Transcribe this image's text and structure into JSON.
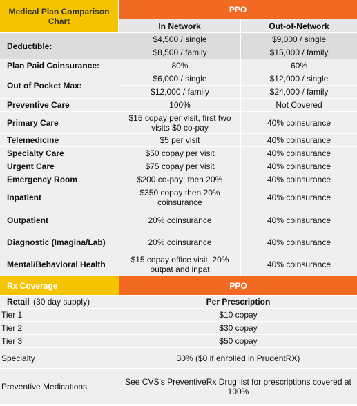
{
  "title": "Medical Plan Comparison Chart",
  "plan_name": "PPO",
  "columns": {
    "in_network": "In Network",
    "out_network": "Out-of-Network"
  },
  "medical_rows": [
    {
      "label": "Deductible:",
      "in": [
        "$4,500 / single",
        "$8,500 / family"
      ],
      "out": [
        "$9,000 / single",
        "$15,000 / family"
      ]
    },
    {
      "label": "Plan Paid Coinsurance:",
      "in": "80%",
      "out": "60%"
    },
    {
      "label": "Out of Pocket Max:",
      "in": [
        "$6,000 / single",
        "$12,000 / family"
      ],
      "out": [
        "$12,000 / single",
        "$24,000 / family"
      ]
    },
    {
      "label": "Preventive Care",
      "in": "100%",
      "out": "Not Covered"
    },
    {
      "label": "Primary Care",
      "in": "$15 copay per visit, first two visits $0 co-pay",
      "out": "40% coinsurance"
    },
    {
      "label": "Telemedicine",
      "in": "$5 per visit",
      "out": "40% coinsurance"
    },
    {
      "label": "Specialty Care",
      "in": "$50 copay per visit",
      "out": "40% coinsurance"
    },
    {
      "label": "Urgent Care",
      "in": "$75 copay per visit",
      "out": "40% coinsurance"
    },
    {
      "label": "Emergency Room",
      "in": "$200 co-pay; then 20%",
      "out": "40% coinsurance"
    },
    {
      "label": "Inpatient",
      "in": "$350 copay then 20% coinsurance",
      "out": "40% coinsurance"
    },
    {
      "label": "Outpatient",
      "in": "20% coinsurance",
      "out": "40% coinsurance"
    },
    {
      "label": "Diagnostic (Imagina/Lab)",
      "in": "20% coinsurance",
      "out": "40% coinsurance"
    },
    {
      "label": "Mental/Behavioral Health",
      "in": "$15 copay office visit, 20% outpat and inpat",
      "out": "40% coinsurance"
    }
  ],
  "rx": {
    "title": "Rx Coverage",
    "plan_name": "PPO",
    "retail_label": "Retail",
    "retail_note": " (30 day supply)",
    "per_prescription": "Per Prescription",
    "rows": [
      {
        "label": "Tier 1",
        "value": "$10 copay"
      },
      {
        "label": "Tier 2",
        "value": "$30 copay"
      },
      {
        "label": "Tier 3",
        "value": "$50 copay"
      },
      {
        "label": "Specialty",
        "value": "30% ($0 if enrolled in PrudentRX)"
      },
      {
        "label": "Preventive Medications",
        "value": "See CVS's PreventiveRx Drug list for prescriptions covered at 100%"
      }
    ]
  },
  "colors": {
    "header_yellow": "#f5c400",
    "header_orange": "#f26a22",
    "row_grey": "#dcdcdc",
    "row_light": "#efefef"
  }
}
